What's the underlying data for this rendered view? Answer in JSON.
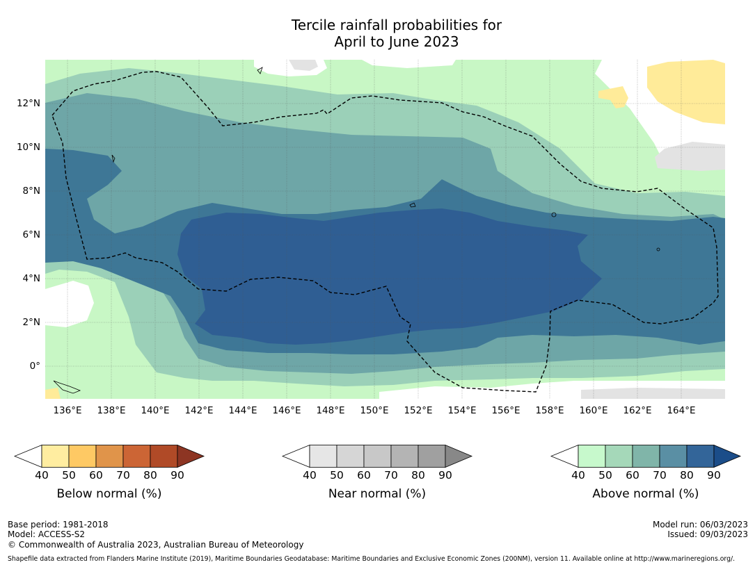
{
  "title": {
    "line1": "Tercile rainfall probabilities for",
    "line2": "April to June 2023"
  },
  "map": {
    "x_ticks": [
      "136°E",
      "138°E",
      "140°E",
      "142°E",
      "144°E",
      "146°E",
      "148°E",
      "150°E",
      "152°E",
      "154°E",
      "156°E",
      "158°E",
      "160°E",
      "162°E",
      "164°E"
    ],
    "y_ticks": [
      "12°N",
      "10°N",
      "8°N",
      "6°N",
      "4°N",
      "2°N",
      "0°"
    ],
    "colors": {
      "above_40": "#c8f7c5",
      "above_50": "#9bd0b8",
      "above_60": "#6ea6a7",
      "above_70": "#3e7796",
      "above_80": "#2f5e93",
      "below_40": "#ffeb99",
      "near_40": "#e3e3e3"
    }
  },
  "colorbars": [
    {
      "label": "Below normal (%)",
      "ticks": [
        "40",
        "50",
        "60",
        "70",
        "80",
        "90"
      ],
      "colors": [
        "#ffeda0",
        "#fec964",
        "#e0944a",
        "#cc6535",
        "#b04a27",
        "#8d3523"
      ]
    },
    {
      "label": "Near normal (%)",
      "ticks": [
        "40",
        "50",
        "60",
        "70",
        "80",
        "90"
      ],
      "colors": [
        "#e6e6e6",
        "#d6d6d6",
        "#c8c8c8",
        "#b4b4b4",
        "#a0a0a0",
        "#888888"
      ]
    },
    {
      "label": "Above normal (%)",
      "ticks": [
        "40",
        "50",
        "60",
        "70",
        "80",
        "90"
      ],
      "colors": [
        "#c7f9cc",
        "#a5d8b9",
        "#80b5a9",
        "#5a8fa4",
        "#336599",
        "#1b4d89"
      ]
    }
  ],
  "footer": {
    "base_period": "Base period: 1981-2018",
    "model": "Model: ACCESS-S2",
    "copyright": "© Commonwealth of Australia 2023, Australian Bureau of Meteorology",
    "model_run": "Model run: 06/03/2023",
    "issued": "Issued: 09/03/2023",
    "shapefile": "Shapefile data extracted from Flanders Marine Institute (2019), Maritime Boundaries Geodatabase: Maritime Boundaries and Exclusive Economic Zones (200NM), version 11. Available online at http://www.marineregions.org/."
  }
}
